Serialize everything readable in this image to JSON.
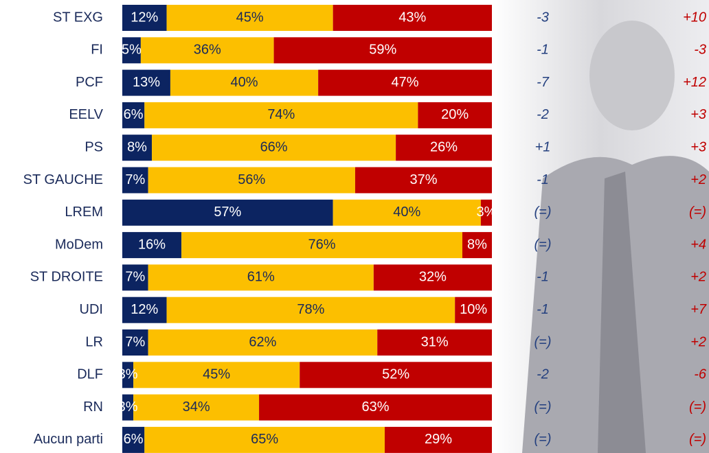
{
  "chart_data": {
    "type": "stacked_barh",
    "categories": [
      "ST EXG",
      "FI",
      "PCF",
      "EELV",
      "PS",
      "ST GAUCHE",
      "LREM",
      "MoDem",
      "ST DROITE",
      "UDI",
      "LR",
      "DLF",
      "RN",
      "Aucun parti"
    ],
    "xlim": [
      0,
      100
    ],
    "series": [
      {
        "color": "#0c2461",
        "label_color": "#ffffff",
        "values": [
          12,
          5,
          13,
          6,
          8,
          7,
          57,
          16,
          7,
          12,
          7,
          3,
          3,
          6
        ],
        "value_labels": [
          "12%",
          "5%",
          "13%",
          "6%",
          "8%",
          "7%",
          "57%",
          "16%",
          "7%",
          "12%",
          "7%",
          "3%",
          "3%",
          "6%"
        ]
      },
      {
        "color": "#fcbf00",
        "label_color": "#1a2a5a",
        "values": [
          45,
          36,
          40,
          74,
          66,
          56,
          40,
          76,
          61,
          78,
          62,
          45,
          34,
          65
        ],
        "value_labels": [
          "45%",
          "36%",
          "40%",
          "74%",
          "66%",
          "56%",
          "40%",
          "76%",
          "61%",
          "78%",
          "62%",
          "45%",
          "34%",
          "65%"
        ]
      },
      {
        "color": "#c00000",
        "label_color": "#ffffff",
        "values": [
          43,
          59,
          47,
          20,
          26,
          37,
          3,
          8,
          32,
          10,
          31,
          52,
          63,
          29
        ],
        "value_labels": [
          "43%",
          "59%",
          "47%",
          "20%",
          "26%",
          "37%",
          "3%",
          "8%",
          "32%",
          "10%",
          "31%",
          "52%",
          "63%",
          "29%"
        ]
      }
    ],
    "change_columns": [
      {
        "color": "#24407f",
        "labels": [
          "-3",
          "-1",
          "-7",
          "-2",
          "+1",
          "-1",
          "(=)",
          "(=)",
          "-1",
          "-1",
          "(=)",
          "-2",
          "(=)",
          "(=)"
        ]
      },
      {
        "color": "#c00000",
        "labels": [
          "+10",
          "-3",
          "+12",
          "+3",
          "+3",
          "+2",
          "(=)",
          "+4",
          "+2",
          "+7",
          "+2",
          "-6",
          "(=)",
          "(=)"
        ]
      }
    ]
  }
}
